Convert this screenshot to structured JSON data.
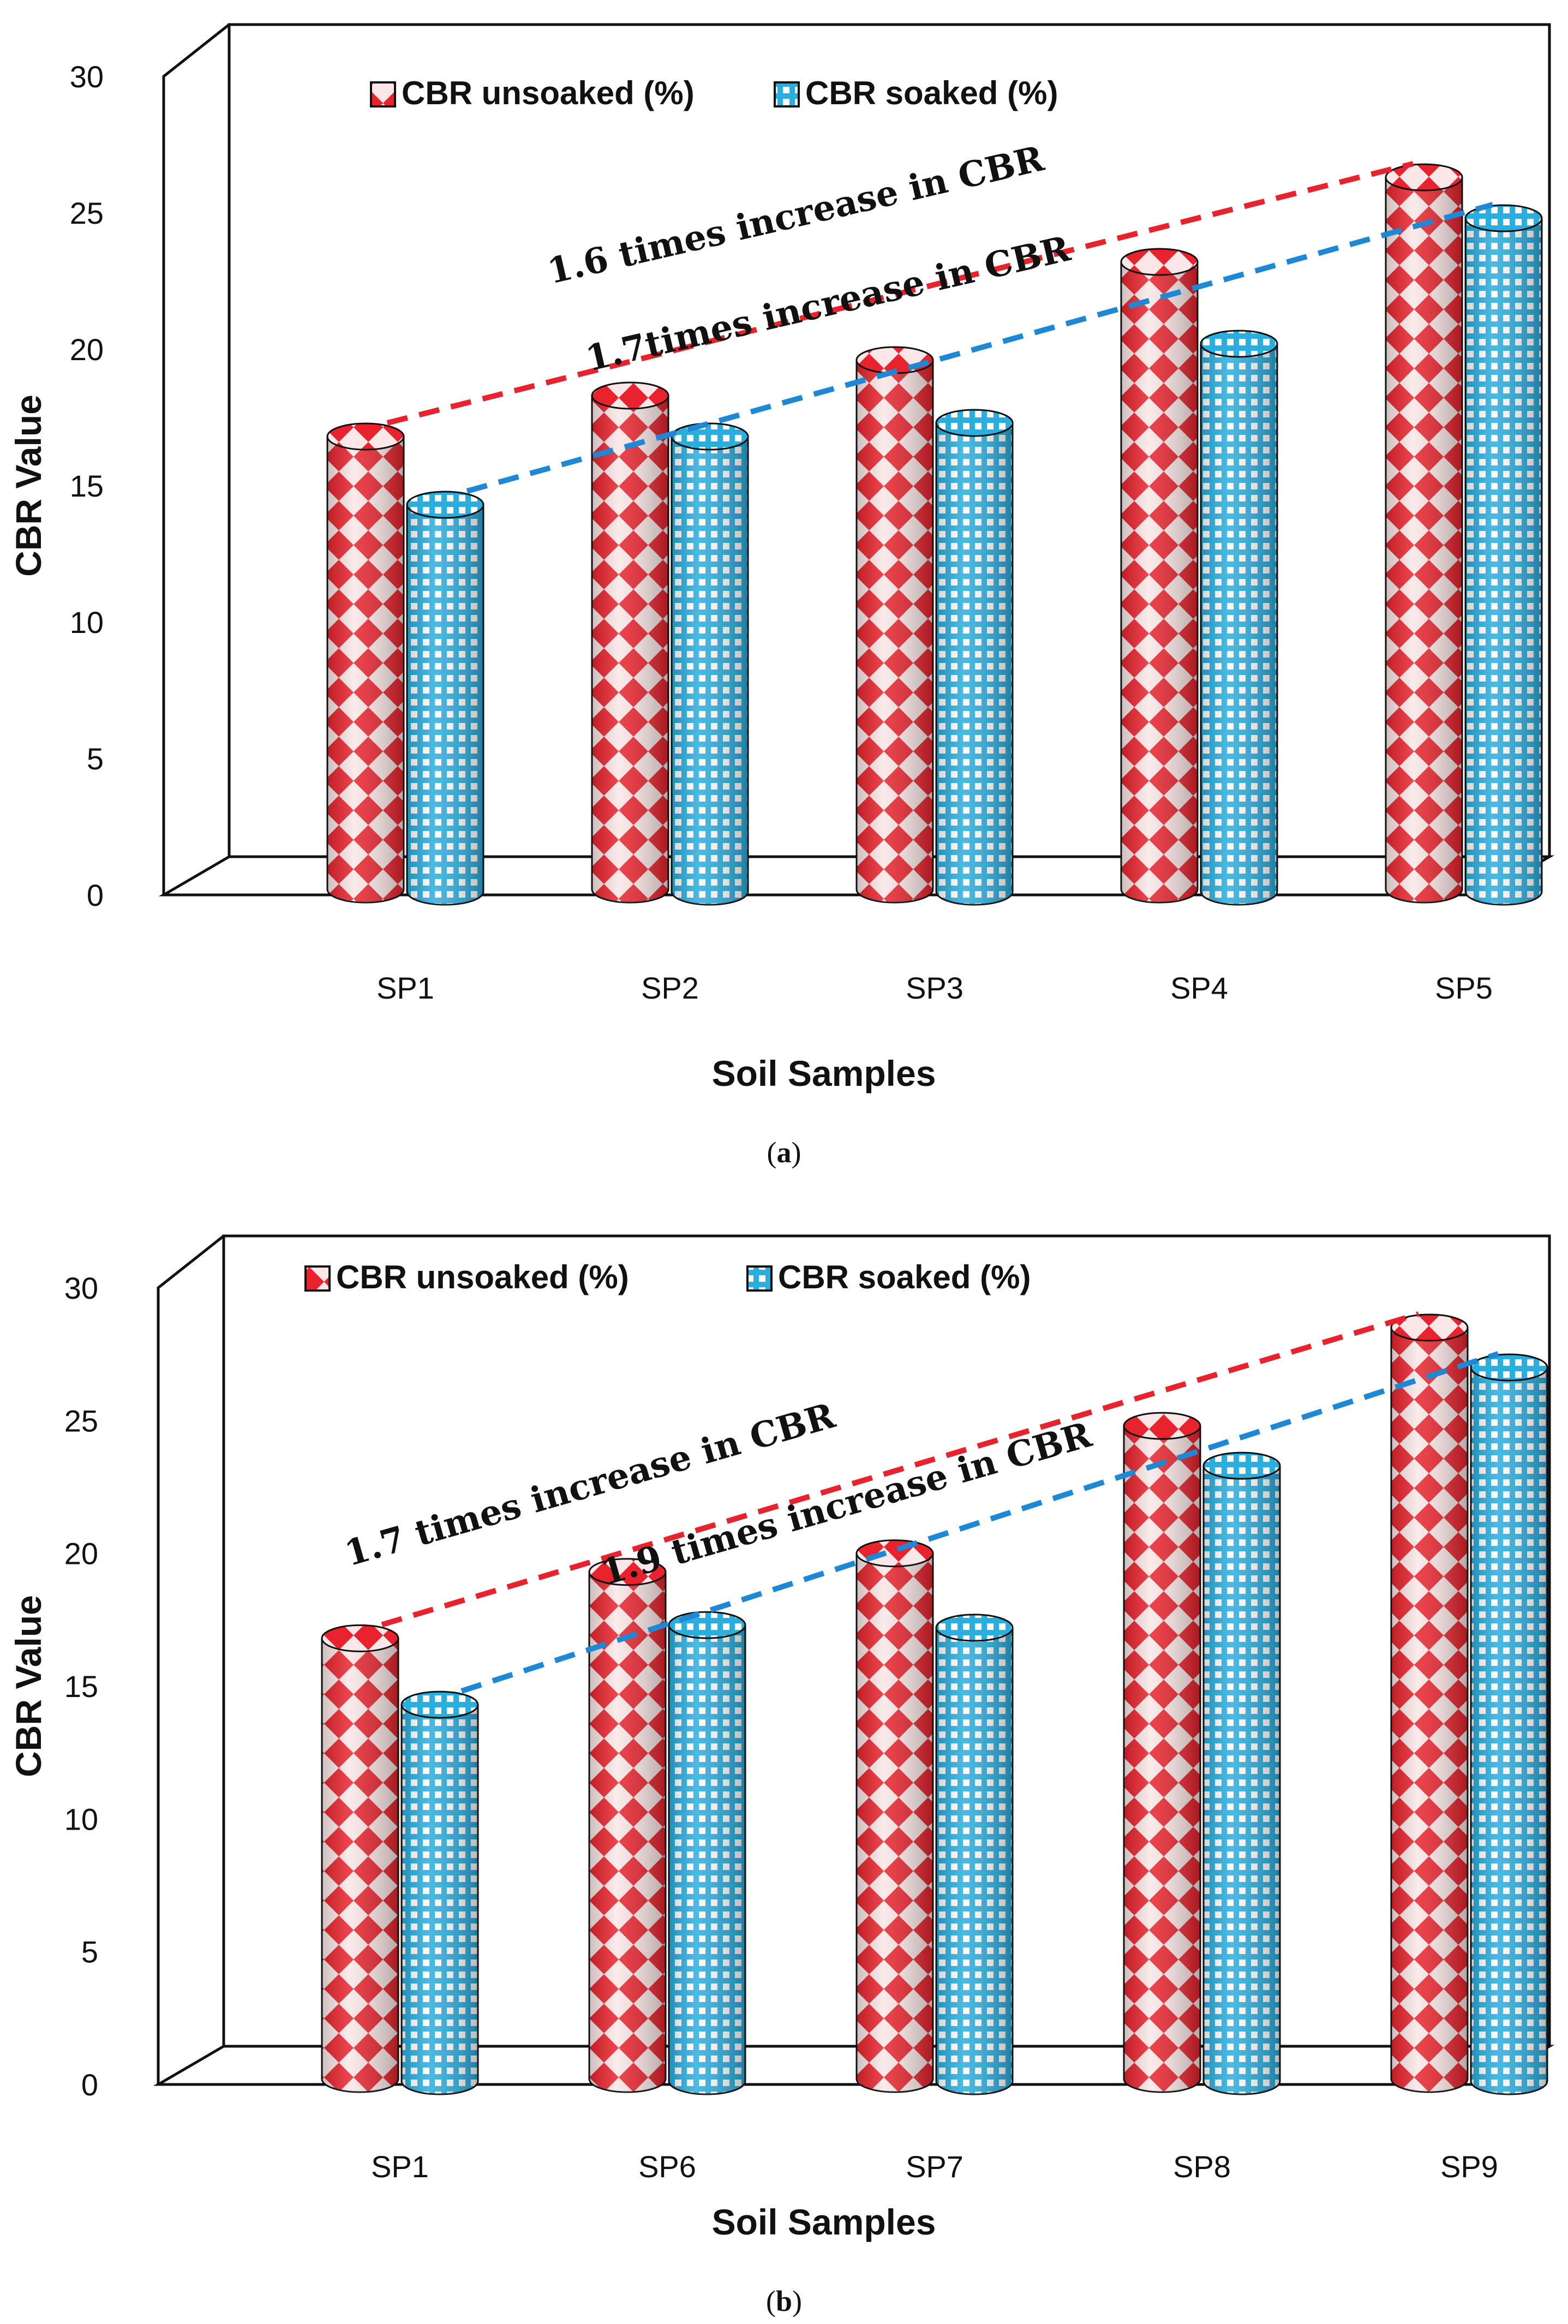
{
  "colors": {
    "unsoaked": "#e8232d",
    "unsoaked_light": "#fbe7e7",
    "soaked": "#2aaee0",
    "soaked_light": "#ffffff",
    "trend_unsoaked": "#e8232d",
    "trend_soaked": "#1e88d4",
    "frame": "#111111"
  },
  "chart_data": [
    {
      "type": "bar",
      "panel": "a",
      "caption": "(a)",
      "caption_letter": "a",
      "ylabel": "CBR Value",
      "xlabel": "Soil Samples",
      "ylim": [
        0,
        30
      ],
      "yticks": [
        0,
        5,
        10,
        15,
        20,
        25,
        30
      ],
      "categories": [
        "SP1",
        "SP2",
        "SP3",
        "SP4",
        "SP5"
      ],
      "series": [
        {
          "name": "CBR unsoaked (%)",
          "values": [
            16.8,
            18.3,
            19.6,
            23.2,
            26.3
          ]
        },
        {
          "name": "CBR soaked (%)",
          "values": [
            14.3,
            16.8,
            17.3,
            20.2,
            24.8
          ]
        }
      ],
      "legend": [
        "CBR unsoaked (%)",
        "CBR soaked (%)"
      ],
      "annotations": [
        {
          "text": "1.6 times increase in CBR",
          "series": "unsoaked"
        },
        {
          "text": "1.7times increase in CBR",
          "series": "soaked"
        }
      ],
      "legend_position": "top"
    },
    {
      "type": "bar",
      "panel": "b",
      "caption": "(b)",
      "caption_letter": "b",
      "ylabel": "CBR Value",
      "xlabel": "Soil Samples",
      "ylim": [
        0,
        30
      ],
      "yticks": [
        0,
        5,
        10,
        15,
        20,
        25,
        30
      ],
      "categories": [
        "SP1",
        "SP6",
        "SP7",
        "SP8",
        "SP9"
      ],
      "series": [
        {
          "name": "CBR unsoaked (%)",
          "values": [
            16.8,
            19.3,
            20.0,
            24.8,
            28.5
          ]
        },
        {
          "name": "CBR soaked (%)",
          "values": [
            14.3,
            17.3,
            17.2,
            23.3,
            27.0
          ]
        }
      ],
      "legend": [
        "CBR unsoaked (%)",
        "CBR soaked (%)"
      ],
      "annotations": [
        {
          "text": "1.7 times increase in CBR",
          "series": "unsoaked"
        },
        {
          "text": "1.9 times increase in CBR",
          "series": "soaked"
        }
      ],
      "legend_position": "top"
    }
  ]
}
